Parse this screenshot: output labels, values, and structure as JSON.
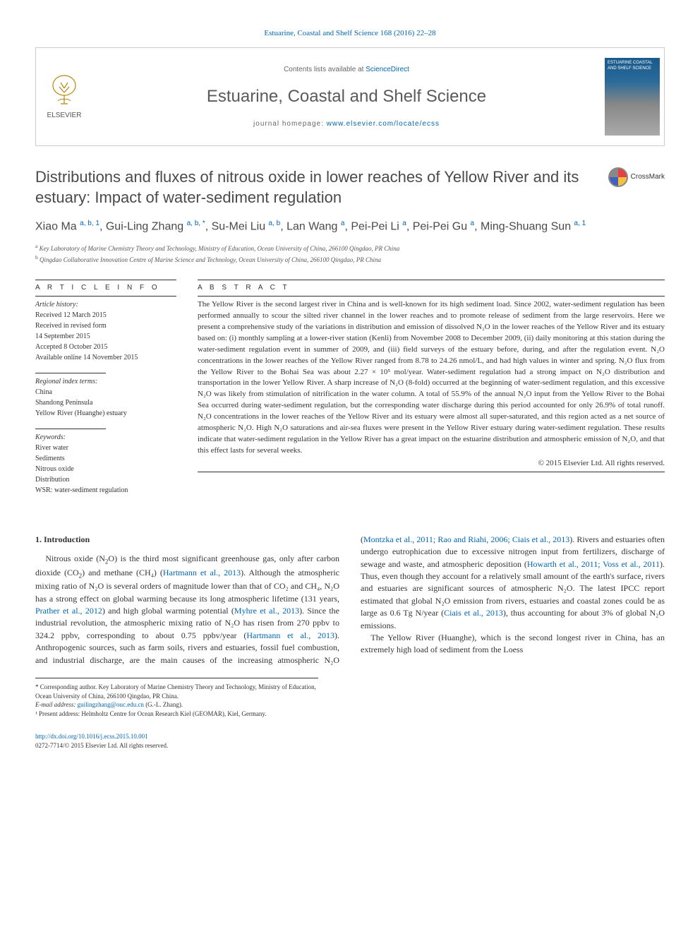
{
  "citation": "Estuarine, Coastal and Shelf Science 168 (2016) 22–28",
  "header": {
    "contents_prefix": "Contents lists available at ",
    "contents_link": "ScienceDirect",
    "journal_name": "Estuarine, Coastal and Shelf Science",
    "homepage_prefix": "journal homepage: ",
    "homepage_link": "www.elsevier.com/locate/ecss",
    "publisher": "ELSEVIER",
    "cover_text": "ESTUARINE COASTAL AND SHELF SCIENCE"
  },
  "title": "Distributions and fluxes of nitrous oxide in lower reaches of Yellow River and its estuary: Impact of water-sediment regulation",
  "crossmark": "CrossMark",
  "authors_html": "Xiao Ma <sup>a, b, 1</sup>, Gui-Ling Zhang <sup>a, b, *</sup>, Su-Mei Liu <sup>a, b</sup>, Lan Wang <sup>a</sup>, Pei-Pei Li <sup>a</sup>, Pei-Pei Gu <sup>a</sup>, Ming-Shuang Sun <sup>a, 1</sup>",
  "affiliations": {
    "a": "Key Laboratory of Marine Chemistry Theory and Technology, Ministry of Education, Ocean University of China, 266100 Qingdao, PR China",
    "b": "Qingdao Collaborative Innovation Centre of Marine Science and Technology, Ocean University of China, 266100 Qingdao, PR China"
  },
  "info": {
    "heading": "A R T I C L E   I N F O",
    "history_label": "Article history:",
    "history": [
      "Received 12 March 2015",
      "Received in revised form",
      "14 September 2015",
      "Accepted 8 October 2015",
      "Available online 14 November 2015"
    ],
    "regional_label": "Regional index terms:",
    "regional": [
      "China",
      "Shandong Peninsula",
      "Yellow River (Huanghe) estuary"
    ],
    "keywords_label": "Keywords:",
    "keywords": [
      "River water",
      "Sediments",
      "Nitrous oxide",
      "Distribution",
      "WSR: water-sediment regulation"
    ]
  },
  "abstract": {
    "heading": "A B S T R A C T",
    "text": "The Yellow River is the second largest river in China and is well-known for its high sediment load. Since 2002, water-sediment regulation has been performed annually to scour the silted river channel in the lower reaches and to promote release of sediment from the large reservoirs. Here we present a comprehensive study of the variations in distribution and emission of dissolved N₂O in the lower reaches of the Yellow River and its estuary based on: (i) monthly sampling at a lower-river station (Kenli) from November 2008 to December 2009, (ii) daily monitoring at this station during the water-sediment regulation event in summer of 2009, and (iii) field surveys of the estuary before, during, and after the regulation event. N₂O concentrations in the lower reaches of the Yellow River ranged from 8.78 to 24.26 nmol/L, and had high values in winter and spring. N₂O flux from the Yellow River to the Bohai Sea was about 2.27 × 10⁵ mol/year. Water-sediment regulation had a strong impact on N₂O distribution and transportation in the lower Yellow River. A sharp increase of N₂O (8-fold) occurred at the beginning of water-sediment regulation, and this excessive N₂O was likely from stimulation of nitrification in the water column. A total of 55.9% of the annual N₂O input from the Yellow River to the Bohai Sea occurred during water-sediment regulation, but the corresponding water discharge during this period accounted for only 26.9% of total runoff. N₂O concentrations in the lower reaches of the Yellow River and its estuary were almost all super-saturated, and this region acted as a net source of atmospheric N₂O. High N₂O saturations and air-sea fluxes were present in the Yellow River estuary during water-sediment regulation. These results indicate that water-sediment regulation in the Yellow River has a great impact on the estuarine distribution and atmospheric emission of N₂O, and that this effect lasts for several weeks.",
    "copyright": "© 2015 Elsevier Ltd. All rights reserved."
  },
  "section1": {
    "heading": "1. Introduction",
    "p1_pre": "Nitrous oxide (N",
    "p1_post": "O) is the third most significant greenhouse gas, only after carbon dioxide (CO",
    "p1_rest": ") and methane (CH₄) (",
    "ref1": "Hartmann et al., 2013",
    "p1b": "). Although the atmospheric mixing ratio of N₂O is several orders of magnitude lower than that of CO₂ and CH₄, N₂O has a strong effect on global warming because its long atmospheric lifetime (131 years, ",
    "ref2": "Prather et al., 2012",
    "p1c": ") and high global warming potential (",
    "ref3": "Myhre et al., 2013",
    "p1d": "). Since the industrial revolution, the",
    "p2a": "atmospheric mixing ratio of N₂O has risen from 270 ppbv to 324.2 ppbv, corresponding to about 0.75 ppbv/year (",
    "ref4": "Hartmann et al., 2013",
    "p2b": "). Anthropogenic sources, such as farm soils, rivers and estuaries, fossil fuel combustion, and industrial discharge, are the main causes of the increasing atmospheric N₂O (",
    "ref5": "Montzka et al., 2011; Rao and Riahi, 2006; Ciais et al., 2013",
    "p2c": "). Rivers and estuaries often undergo eutrophication due to excessive nitrogen input from fertilizers, discharge of sewage and waste, and atmospheric deposition (",
    "ref6": "Howarth et al., 2011; Voss et al., 2011",
    "p2d": "). Thus, even though they account for a relatively small amount of the earth's surface, rivers and estuaries are significant sources of atmospheric N₂O. The latest IPCC report estimated that global N₂O emission from rivers, estuaries and coastal zones could be as large as 0.6 Tg N/year (",
    "ref7": "Ciais et al., 2013",
    "p2e": "), thus accounting for about 3% of global N₂O emissions.",
    "p3": "The Yellow River (Huanghe), which is the second longest river in China, has an extremely high load of sediment from the Loess"
  },
  "footnotes": {
    "corr": "* Corresponding author. Key Laboratory of Marine Chemistry Theory and Technology, Ministry of Education, Ocean University of China, 266100 Qingdao, PR China.",
    "email_label": "E-mail address: ",
    "email": "guilingzhang@ouc.edu.cn",
    "email_suffix": " (G.-L. Zhang).",
    "present": "¹ Present address: Helmholtz Centre for Ocean Research Kiel (GEOMAR), Kiel, Germany."
  },
  "footer": {
    "doi": "http://dx.doi.org/10.1016/j.ecss.2015.10.001",
    "issn": "0272-7714/© 2015 Elsevier Ltd. All rights reserved."
  },
  "colors": {
    "link": "#0066b3",
    "text": "#333333",
    "heading": "#4a4a4a",
    "border": "#cccccc"
  }
}
